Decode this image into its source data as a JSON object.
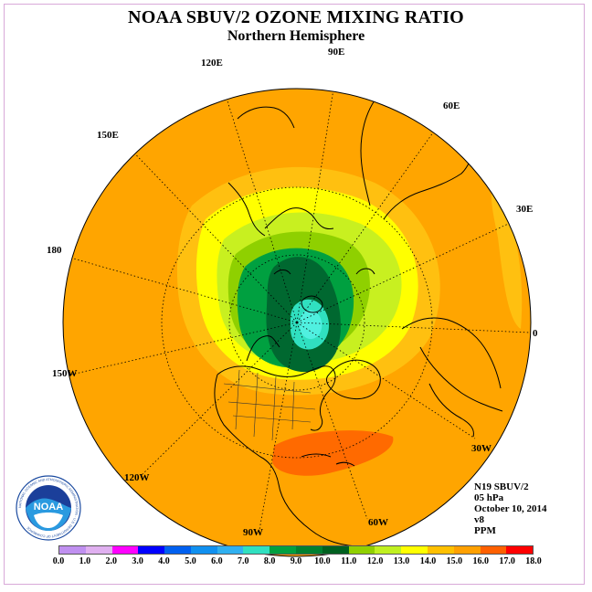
{
  "title": "NOAA SBUV/2 OZONE MIXING RATIO",
  "subtitle": "Northern Hemisphere",
  "longitude_labels": {
    "e90": "90E",
    "e120": "120E",
    "e60": "60E",
    "e150": "150E",
    "e30": "30E",
    "d180": "180",
    "d0": "0",
    "w150": "150W",
    "w30": "30W",
    "w120": "120W",
    "w60": "60W",
    "w90": "90W"
  },
  "info": {
    "satellite": "N19 SBUV/2",
    "level": "05 hPa",
    "date": "October 10, 2014",
    "version": "v8",
    "units": "PPM"
  },
  "logo": {
    "text": "NOAA",
    "ring_text": "NATIONAL OCEANIC AND ATMOSPHERIC ADMINISTRATION · U.S. DEPARTMENT OF COMMERCE"
  },
  "colorbar": {
    "ticks": [
      "0.0",
      "1.0",
      "2.0",
      "3.0",
      "4.0",
      "5.0",
      "6.0",
      "7.0",
      "8.0",
      "9.0",
      "10.0",
      "11.0",
      "12.0",
      "13.0",
      "14.0",
      "15.0",
      "16.0",
      "17.0",
      "18.0"
    ],
    "colors": [
      "#c090f0",
      "#e0b0f0",
      "#ff00ff",
      "#0000ff",
      "#0060f0",
      "#1090f0",
      "#30b0f0",
      "#30e0c0",
      "#00a040",
      "#008030",
      "#006020",
      "#90d000",
      "#c0f020",
      "#ffff00",
      "#ffc000",
      "#ffa000",
      "#ff6000",
      "#ff0000",
      "#a06030"
    ]
  },
  "map_colors": {
    "ocean_base": "#ffa500",
    "band_13_14": "#ffc010",
    "band_12_13": "#ffff00",
    "band_11_12": "#c8f020",
    "band_10_11": "#8fd000",
    "band_9_10": "#00a040",
    "band_8_9": "#006830",
    "band_7_8": "#30e0c0",
    "band_6_7": "#50f0e0",
    "band_15_16": "#ff6a00"
  }
}
